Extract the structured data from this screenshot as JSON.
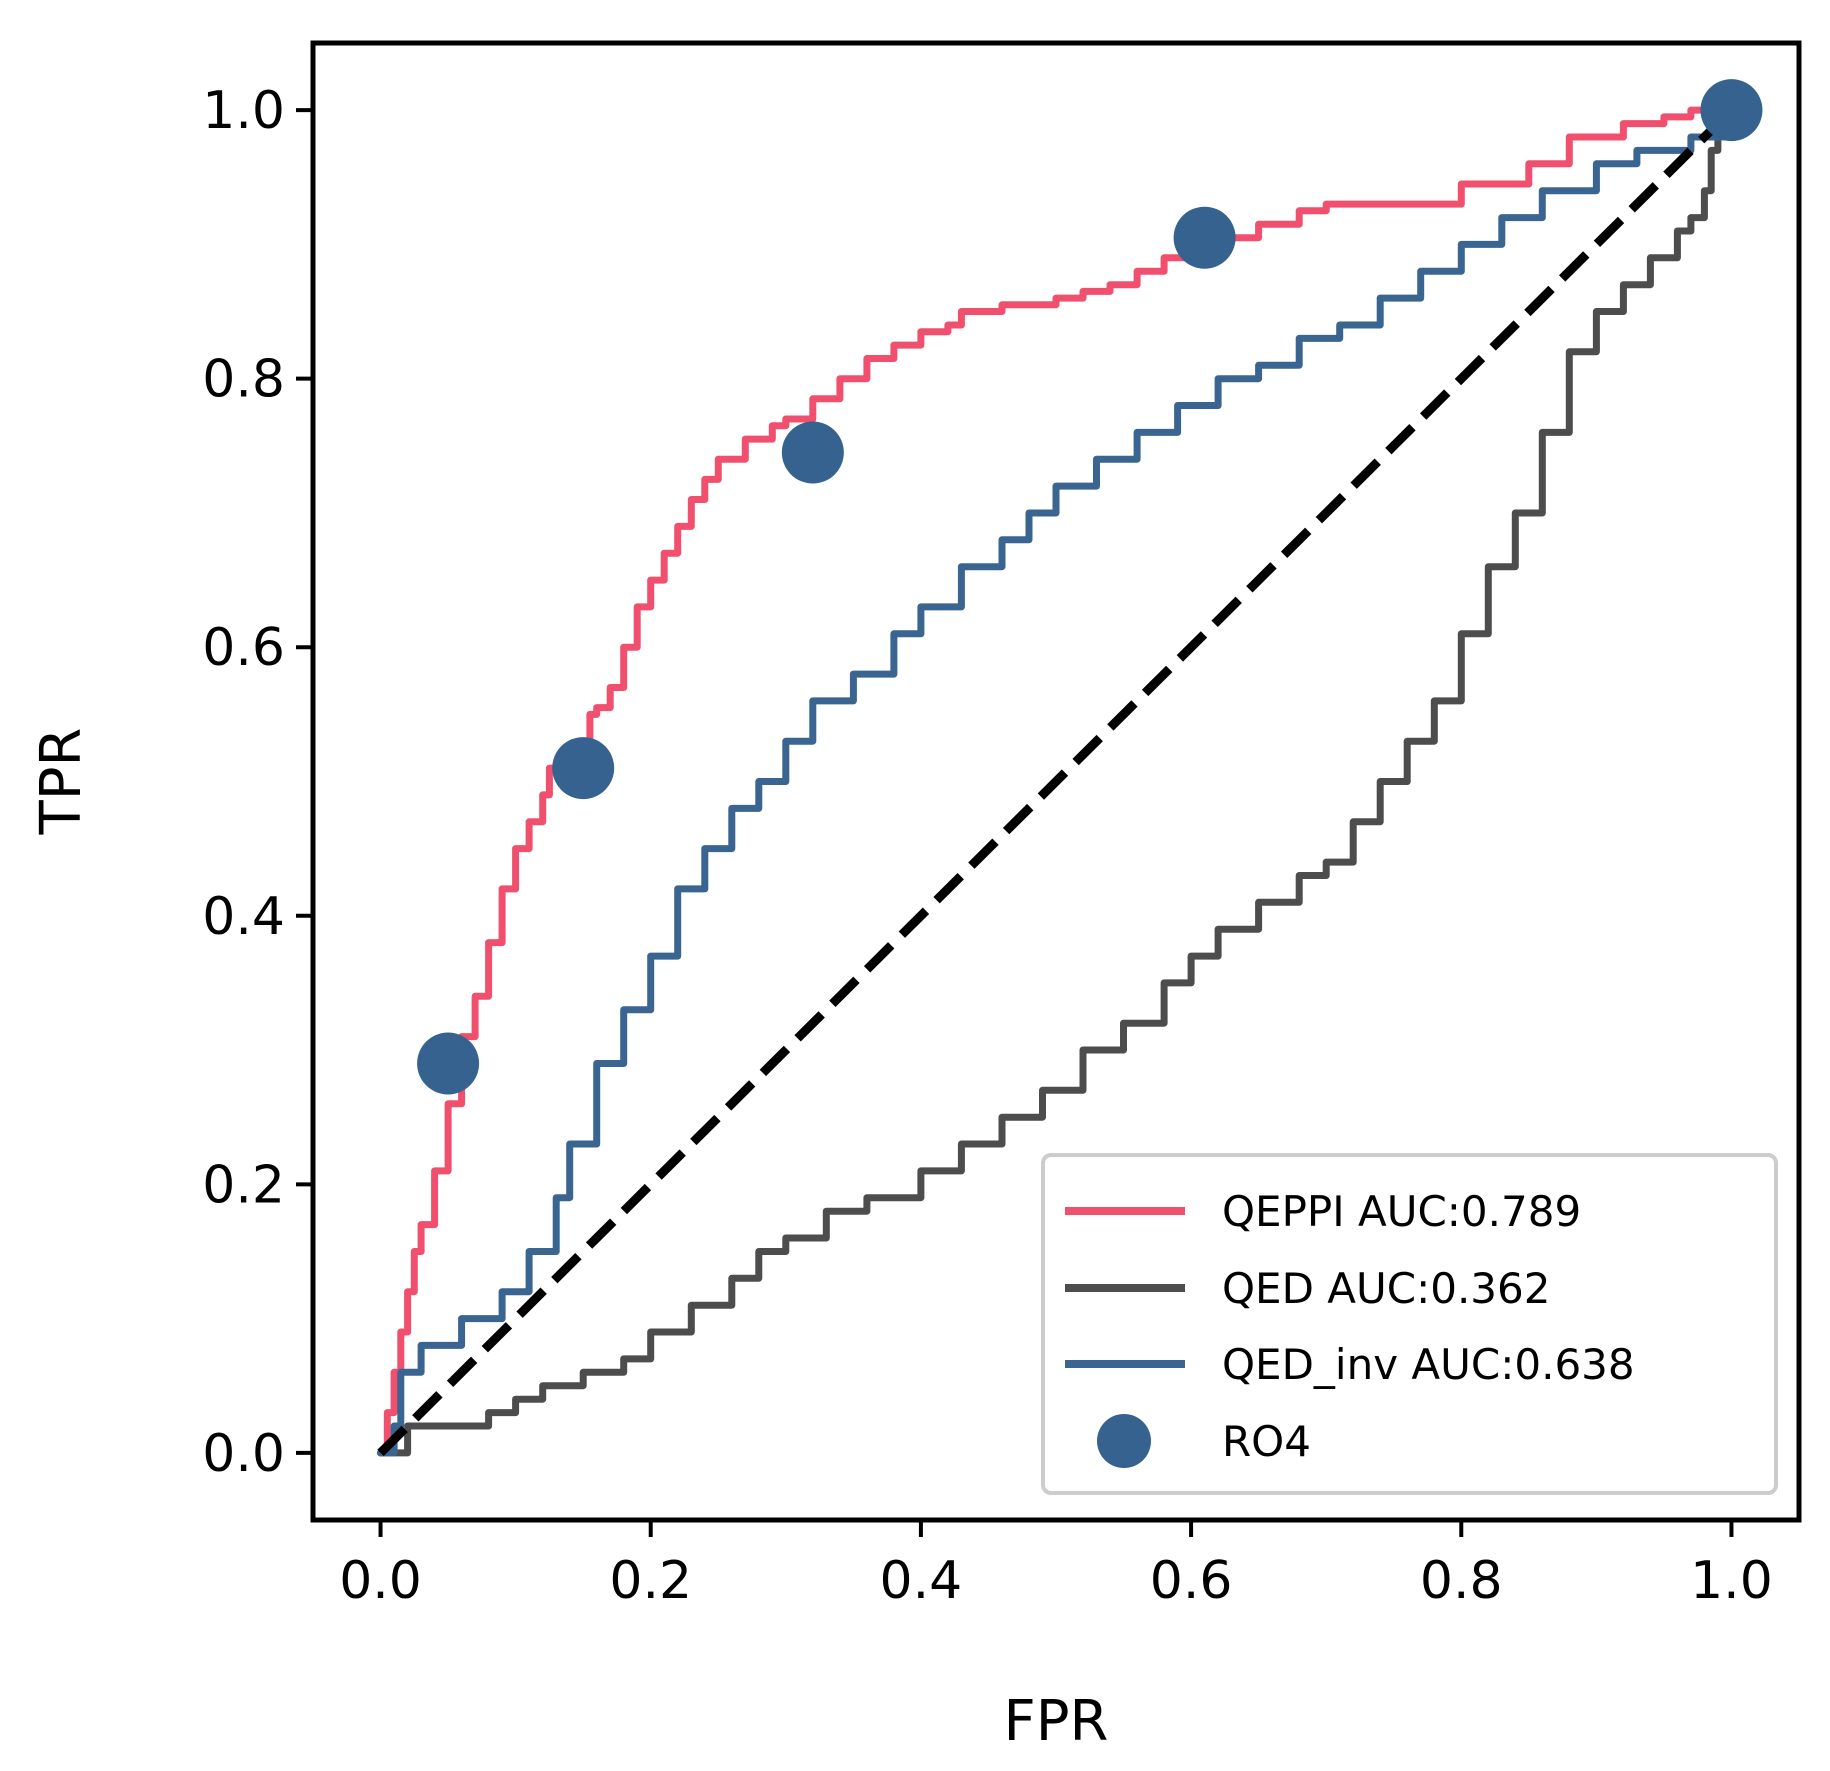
{
  "chart_data": {
    "type": "line",
    "xlabel": "FPR",
    "ylabel": "TPR",
    "xlim": [
      -0.05,
      1.05
    ],
    "ylim": [
      -0.05,
      1.05
    ],
    "x_ticks": [
      0.0,
      0.2,
      0.4,
      0.6,
      0.8,
      1.0
    ],
    "y_ticks": [
      0.0,
      0.2,
      0.4,
      0.6,
      0.8,
      1.0
    ],
    "tick_labels": {
      "x": [
        "0.0",
        "0.2",
        "0.4",
        "0.6",
        "0.8",
        "1.0"
      ],
      "y": [
        "0.0",
        "0.2",
        "0.4",
        "0.6",
        "0.8",
        "1.0"
      ]
    },
    "legend_position": "lower-right",
    "series": [
      {
        "name": "QEPPI AUC:0.789",
        "color": "#f0506e",
        "points": [
          [
            0,
            0
          ],
          [
            0.005,
            0.03
          ],
          [
            0.01,
            0.06
          ],
          [
            0.015,
            0.09
          ],
          [
            0.02,
            0.12
          ],
          [
            0.025,
            0.15
          ],
          [
            0.03,
            0.17
          ],
          [
            0.04,
            0.21
          ],
          [
            0.05,
            0.26
          ],
          [
            0.06,
            0.31
          ],
          [
            0.07,
            0.34
          ],
          [
            0.08,
            0.38
          ],
          [
            0.09,
            0.42
          ],
          [
            0.1,
            0.45
          ],
          [
            0.11,
            0.47
          ],
          [
            0.12,
            0.49
          ],
          [
            0.125,
            0.51
          ],
          [
            0.14,
            0.52
          ],
          [
            0.15,
            0.53
          ],
          [
            0.155,
            0.55
          ],
          [
            0.16,
            0.555
          ],
          [
            0.17,
            0.57
          ],
          [
            0.18,
            0.6
          ],
          [
            0.19,
            0.63
          ],
          [
            0.2,
            0.65
          ],
          [
            0.21,
            0.67
          ],
          [
            0.22,
            0.69
          ],
          [
            0.23,
            0.71
          ],
          [
            0.24,
            0.725
          ],
          [
            0.25,
            0.74
          ],
          [
            0.27,
            0.755
          ],
          [
            0.29,
            0.765
          ],
          [
            0.3,
            0.77
          ],
          [
            0.32,
            0.785
          ],
          [
            0.34,
            0.8
          ],
          [
            0.36,
            0.815
          ],
          [
            0.38,
            0.825
          ],
          [
            0.4,
            0.835
          ],
          [
            0.42,
            0.84
          ],
          [
            0.43,
            0.85
          ],
          [
            0.46,
            0.855
          ],
          [
            0.5,
            0.86
          ],
          [
            0.52,
            0.865
          ],
          [
            0.54,
            0.87
          ],
          [
            0.56,
            0.88
          ],
          [
            0.58,
            0.89
          ],
          [
            0.6,
            0.9
          ],
          [
            0.62,
            0.905
          ],
          [
            0.65,
            0.915
          ],
          [
            0.68,
            0.925
          ],
          [
            0.7,
            0.93
          ],
          [
            0.75,
            0.93
          ],
          [
            0.8,
            0.945
          ],
          [
            0.85,
            0.96
          ],
          [
            0.88,
            0.98
          ],
          [
            0.92,
            0.99
          ],
          [
            0.95,
            0.995
          ],
          [
            0.97,
            1.0
          ],
          [
            1.0,
            1.0
          ]
        ]
      },
      {
        "name": "QED AUC:0.362",
        "color": "#4d4d4d",
        "points": [
          [
            0,
            0
          ],
          [
            0.02,
            0.02
          ],
          [
            0.05,
            0.02
          ],
          [
            0.08,
            0.03
          ],
          [
            0.1,
            0.04
          ],
          [
            0.12,
            0.05
          ],
          [
            0.15,
            0.06
          ],
          [
            0.18,
            0.07
          ],
          [
            0.2,
            0.09
          ],
          [
            0.23,
            0.11
          ],
          [
            0.26,
            0.13
          ],
          [
            0.28,
            0.15
          ],
          [
            0.3,
            0.16
          ],
          [
            0.33,
            0.18
          ],
          [
            0.36,
            0.19
          ],
          [
            0.4,
            0.21
          ],
          [
            0.43,
            0.23
          ],
          [
            0.46,
            0.25
          ],
          [
            0.49,
            0.27
          ],
          [
            0.52,
            0.3
          ],
          [
            0.55,
            0.32
          ],
          [
            0.58,
            0.35
          ],
          [
            0.6,
            0.37
          ],
          [
            0.62,
            0.39
          ],
          [
            0.65,
            0.41
          ],
          [
            0.68,
            0.43
          ],
          [
            0.7,
            0.44
          ],
          [
            0.72,
            0.47
          ],
          [
            0.74,
            0.5
          ],
          [
            0.76,
            0.53
          ],
          [
            0.78,
            0.56
          ],
          [
            0.8,
            0.61
          ],
          [
            0.82,
            0.66
          ],
          [
            0.84,
            0.7
          ],
          [
            0.86,
            0.76
          ],
          [
            0.88,
            0.82
          ],
          [
            0.9,
            0.85
          ],
          [
            0.92,
            0.87
          ],
          [
            0.94,
            0.89
          ],
          [
            0.96,
            0.91
          ],
          [
            0.97,
            0.92
          ],
          [
            0.98,
            0.94
          ],
          [
            0.985,
            0.97
          ],
          [
            0.99,
            0.99
          ],
          [
            1.0,
            1.0
          ]
        ]
      },
      {
        "name": "QED_inv AUC:0.638",
        "color": "#3a6591",
        "points": [
          [
            0,
            0
          ],
          [
            0.01,
            0.02
          ],
          [
            0.015,
            0.06
          ],
          [
            0.03,
            0.08
          ],
          [
            0.06,
            0.1
          ],
          [
            0.09,
            0.12
          ],
          [
            0.11,
            0.15
          ],
          [
            0.13,
            0.19
          ],
          [
            0.14,
            0.23
          ],
          [
            0.16,
            0.29
          ],
          [
            0.18,
            0.33
          ],
          [
            0.2,
            0.37
          ],
          [
            0.22,
            0.42
          ],
          [
            0.24,
            0.45
          ],
          [
            0.26,
            0.48
          ],
          [
            0.28,
            0.5
          ],
          [
            0.3,
            0.53
          ],
          [
            0.32,
            0.56
          ],
          [
            0.35,
            0.58
          ],
          [
            0.38,
            0.61
          ],
          [
            0.4,
            0.63
          ],
          [
            0.43,
            0.66
          ],
          [
            0.46,
            0.68
          ],
          [
            0.48,
            0.7
          ],
          [
            0.5,
            0.72
          ],
          [
            0.53,
            0.74
          ],
          [
            0.56,
            0.76
          ],
          [
            0.59,
            0.78
          ],
          [
            0.62,
            0.8
          ],
          [
            0.65,
            0.81
          ],
          [
            0.68,
            0.83
          ],
          [
            0.71,
            0.84
          ],
          [
            0.74,
            0.86
          ],
          [
            0.77,
            0.88
          ],
          [
            0.8,
            0.9
          ],
          [
            0.83,
            0.92
          ],
          [
            0.86,
            0.94
          ],
          [
            0.9,
            0.96
          ],
          [
            0.93,
            0.97
          ],
          [
            0.97,
            0.98
          ],
          [
            1.0,
            1.0
          ]
        ]
      }
    ],
    "diagonal": {
      "color": "#000000",
      "points": [
        [
          0,
          0
        ],
        [
          1,
          1
        ]
      ]
    },
    "markers": {
      "name": "RO4",
      "color": "#35628f",
      "points": [
        [
          0.05,
          0.29
        ],
        [
          0.15,
          0.51
        ],
        [
          0.32,
          0.745
        ],
        [
          0.61,
          0.905
        ],
        [
          1.0,
          1.0
        ]
      ]
    }
  }
}
